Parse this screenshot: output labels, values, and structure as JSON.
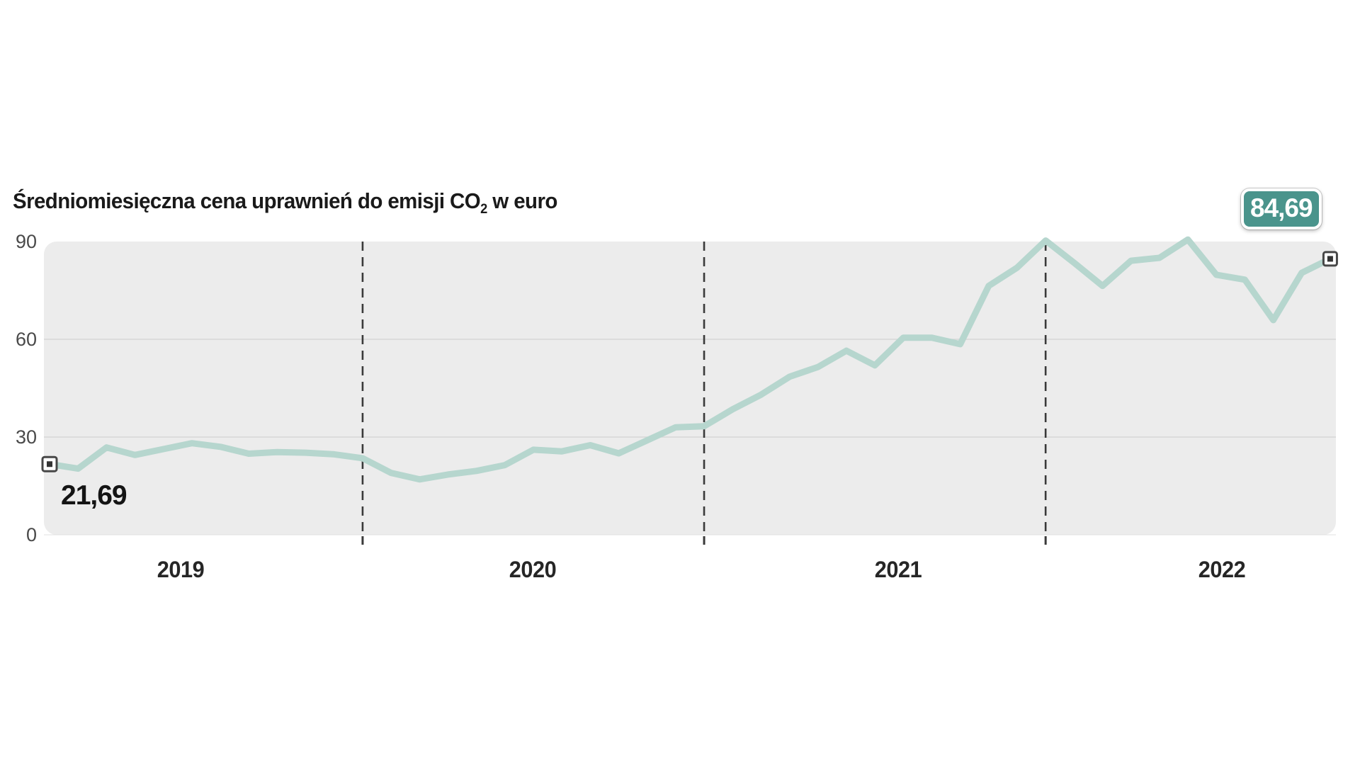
{
  "header": {
    "title_prefix": "Średniomiesięczna cena uprawnień do emisji CO",
    "title_sub": "2",
    "title_suffix": " w euro",
    "badge_value": "84,69"
  },
  "annotations": {
    "start_value_label": "21,69",
    "end_value_label": "84,69"
  },
  "axis": {
    "yticks": [
      "90",
      "60",
      "30",
      "0"
    ],
    "year_labels": [
      "2019",
      "2020",
      "2021",
      "2022"
    ]
  },
  "colors": {
    "line": "#b6d6ce",
    "badge": "#4a948c",
    "plot_background": "#ececec",
    "gridline": "#d6d6d6",
    "dashed_line": "#3a3a3a",
    "marker_border": "#474747",
    "marker_inner": "#333333",
    "text_dark": "#1a1a1a",
    "text_gray": "#4a4a4a"
  },
  "chart_data": {
    "type": "line",
    "title": "Średniomiesięczna cena uprawnień do emisji CO2 w euro",
    "unit": "EUR",
    "ylabel": "",
    "xlabel": "",
    "ylim": [
      0,
      90
    ],
    "yticks": [
      0,
      30,
      60,
      90
    ],
    "grid_on": true,
    "legend_position": "none",
    "year_boundary_indices": [
      11,
      23,
      35
    ],
    "x": [
      "2019-02",
      "2019-03",
      "2019-04",
      "2019-05",
      "2019-06",
      "2019-07",
      "2019-08",
      "2019-09",
      "2019-10",
      "2019-11",
      "2019-12",
      "2020-01",
      "2020-02",
      "2020-03",
      "2020-04",
      "2020-05",
      "2020-06",
      "2020-07",
      "2020-08",
      "2020-09",
      "2020-10",
      "2020-11",
      "2020-12",
      "2021-01",
      "2021-02",
      "2021-03",
      "2021-04",
      "2021-05",
      "2021-06",
      "2021-07",
      "2021-08",
      "2021-09",
      "2021-10",
      "2021-11",
      "2021-12",
      "2022-01",
      "2022-02",
      "2022-03",
      "2022-04",
      "2022-05",
      "2022-06",
      "2022-07",
      "2022-08",
      "2022-09",
      "2022-10",
      "2022-11"
    ],
    "values": [
      21.69,
      20.3,
      26.8,
      24.5,
      26.3,
      28.1,
      27.0,
      24.9,
      25.4,
      25.2,
      24.7,
      23.5,
      19.0,
      17.0,
      18.5,
      19.6,
      21.4,
      26.1,
      25.6,
      27.5,
      25.0,
      29.0,
      33.0,
      33.3,
      38.5,
      43.0,
      48.5,
      51.5,
      56.5,
      52.0,
      60.5,
      60.5,
      58.5,
      76.4,
      82.0,
      90.3,
      83.5,
      76.4,
      84.1,
      85.0,
      90.6,
      79.8,
      78.3,
      65.9,
      80.4,
      84.69
    ],
    "first_point_label": "21,69",
    "last_point_label": "84,69"
  }
}
